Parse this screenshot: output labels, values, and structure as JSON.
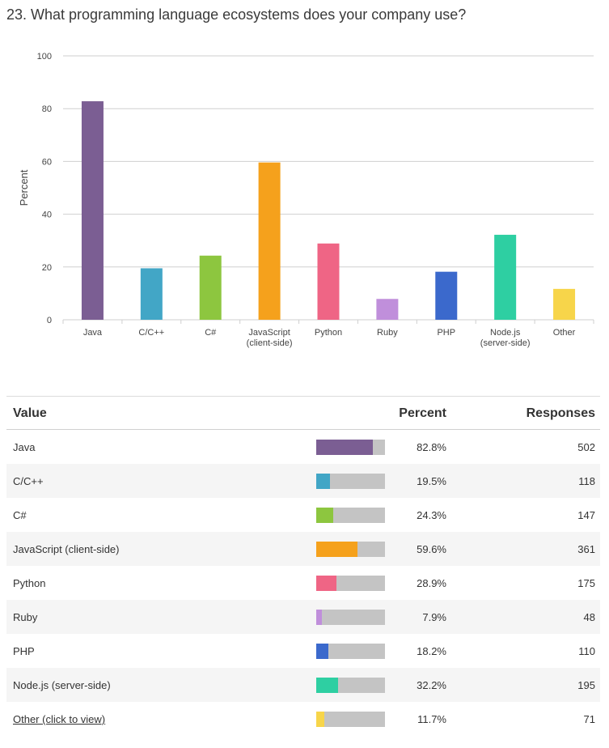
{
  "question": {
    "title": "23. What programming language ecosystems does your company use?"
  },
  "chart_data": {
    "type": "bar",
    "title": "23. What programming language ecosystems does your company use?",
    "ylabel": "Percent",
    "xlabel": "",
    "ylim": [
      0,
      100
    ],
    "yticks": [
      "0",
      "20",
      "40",
      "60",
      "80",
      "100"
    ],
    "grid": true,
    "categories": [
      [
        "Java"
      ],
      [
        "C/C++"
      ],
      [
        "C#"
      ],
      [
        "JavaScript",
        "(client-side)"
      ],
      [
        "Python"
      ],
      [
        "Ruby"
      ],
      [
        "PHP"
      ],
      [
        "Node.js",
        "(server-side)"
      ],
      [
        "Other"
      ]
    ],
    "values": [
      82.8,
      19.5,
      24.3,
      59.6,
      28.9,
      7.9,
      18.2,
      32.2,
      11.7
    ],
    "colors": [
      "#7b5e93",
      "#42a6c6",
      "#8dc63f",
      "#f5a11c",
      "#ef6585",
      "#c08fdb",
      "#3b69cc",
      "#2ecfa2",
      "#f7d54a"
    ]
  },
  "table": {
    "headers": {
      "value": "Value",
      "percent": "Percent",
      "responses": "Responses"
    },
    "rows": [
      {
        "label": "Java",
        "percent": "82.8%",
        "responses": "502"
      },
      {
        "label": "C/C++",
        "percent": "19.5%",
        "responses": "118"
      },
      {
        "label": "C#",
        "percent": "24.3%",
        "responses": "147"
      },
      {
        "label": "JavaScript (client-side)",
        "percent": "59.6%",
        "responses": "361"
      },
      {
        "label": "Python",
        "percent": "28.9%",
        "responses": "175"
      },
      {
        "label": "Ruby",
        "percent": "7.9%",
        "responses": "48"
      },
      {
        "label": "PHP",
        "percent": "18.2%",
        "responses": "110"
      },
      {
        "label": "Node.js (server-side)",
        "percent": "32.2%",
        "responses": "195"
      },
      {
        "label": "Other (click to view)",
        "percent": "11.7%",
        "responses": "71"
      }
    ]
  }
}
